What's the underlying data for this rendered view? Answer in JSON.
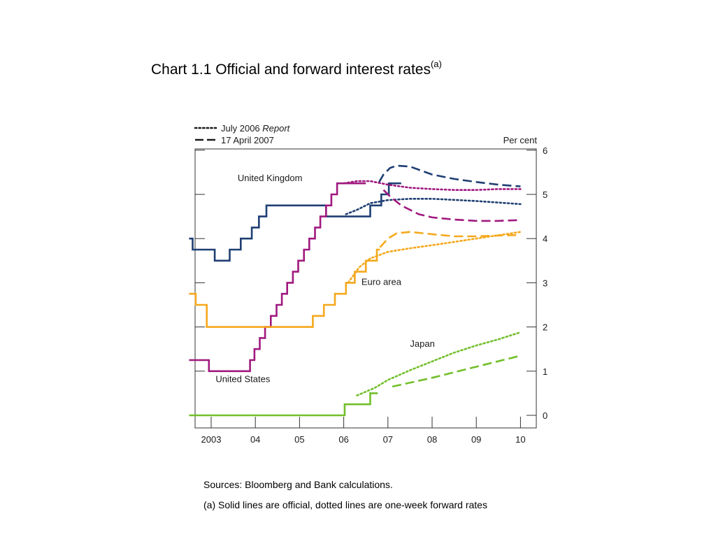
{
  "page": {
    "title": "Chart 1.1  Official and forward interest rates",
    "title_sup": "(a)",
    "sources": "Sources:  Bloomberg and Bank calculations.",
    "footnote": "(a) Solid lines are official, dotted lines are one-week forward rates"
  },
  "chart_data": {
    "type": "line",
    "title": "",
    "xlabel": "",
    "ylabel": "Per cent",
    "ylim": [
      0,
      6
    ],
    "xlim": [
      2002.5,
      2010.05
    ],
    "x_ticks": [
      {
        "label": "2003",
        "x": 2003.0
      },
      {
        "label": "04",
        "x": 2004.0
      },
      {
        "label": "05",
        "x": 2005.0
      },
      {
        "label": "06",
        "x": 2006.0
      },
      {
        "label": "07",
        "x": 2007.0
      },
      {
        "label": "08",
        "x": 2008.0
      },
      {
        "label": "09",
        "x": 2009.0
      },
      {
        "label": "10",
        "x": 2010.0
      }
    ],
    "y_ticks": [
      0,
      1,
      2,
      3,
      4,
      5,
      6
    ],
    "grid": false,
    "legend": {
      "position": "top-left",
      "entries": [
        {
          "label": "July 2006 ",
          "label_italic": "Report",
          "style": "dotted"
        },
        {
          "label": "17 April 2007",
          "style": "dashed"
        }
      ]
    },
    "annotations": [
      {
        "text": "United Kingdom",
        "x": 2003.6,
        "y": 5.3
      },
      {
        "text": "United States",
        "x": 2003.1,
        "y": 0.75
      },
      {
        "text": "Euro area",
        "x": 2006.4,
        "y": 2.95
      },
      {
        "text": "Japan",
        "x": 2007.5,
        "y": 1.55
      }
    ],
    "series": [
      {
        "name": "United Kingdom",
        "color": "#1f3f73",
        "style": "official",
        "points": [
          [
            2002.5,
            4.0
          ],
          [
            2002.58,
            4.0
          ],
          [
            2002.58,
            3.75
          ],
          [
            2003.08,
            3.75
          ],
          [
            2003.08,
            3.5
          ],
          [
            2003.42,
            3.5
          ],
          [
            2003.42,
            3.75
          ],
          [
            2003.67,
            3.75
          ],
          [
            2003.67,
            4.0
          ],
          [
            2003.92,
            4.0
          ],
          [
            2003.92,
            4.25
          ],
          [
            2004.08,
            4.25
          ],
          [
            2004.08,
            4.5
          ],
          [
            2004.25,
            4.5
          ],
          [
            2004.25,
            4.75
          ],
          [
            2004.5,
            4.75
          ],
          [
            2004.5,
            4.75
          ],
          [
            2005.08,
            4.75
          ],
          [
            2005.08,
            4.75
          ],
          [
            2005.6,
            4.75
          ],
          [
            2005.6,
            4.5
          ],
          [
            2006.6,
            4.5
          ],
          [
            2006.6,
            4.75
          ],
          [
            2006.85,
            4.75
          ],
          [
            2006.85,
            5.0
          ],
          [
            2007.02,
            5.0
          ],
          [
            2007.02,
            5.25
          ],
          [
            2007.3,
            5.25
          ]
        ]
      },
      {
        "name": "United Kingdom",
        "color": "#1f3f73",
        "style": "dotted",
        "points": [
          [
            2006.05,
            4.55
          ],
          [
            2006.3,
            4.65
          ],
          [
            2006.6,
            4.8
          ],
          [
            2007.0,
            4.87
          ],
          [
            2007.5,
            4.9
          ],
          [
            2008.0,
            4.9
          ],
          [
            2009.0,
            4.85
          ],
          [
            2010.0,
            4.78
          ]
        ]
      },
      {
        "name": "United Kingdom",
        "color": "#1f3f73",
        "style": "dashed",
        "points": [
          [
            2006.8,
            5.28
          ],
          [
            2006.9,
            5.45
          ],
          [
            2007.05,
            5.6
          ],
          [
            2007.2,
            5.65
          ],
          [
            2007.5,
            5.63
          ],
          [
            2008.0,
            5.45
          ],
          [
            2008.5,
            5.35
          ],
          [
            2009.0,
            5.28
          ],
          [
            2009.5,
            5.22
          ],
          [
            2010.0,
            5.18
          ]
        ]
      },
      {
        "name": "United States",
        "color": "#a0197f",
        "style": "official",
        "points": [
          [
            2002.5,
            1.25
          ],
          [
            2002.95,
            1.25
          ],
          [
            2002.95,
            1.0
          ],
          [
            2003.88,
            1.0
          ],
          [
            2003.88,
            1.25
          ],
          [
            2003.98,
            1.25
          ],
          [
            2003.98,
            1.5
          ],
          [
            2004.1,
            1.5
          ],
          [
            2004.1,
            1.75
          ],
          [
            2004.22,
            1.75
          ],
          [
            2004.22,
            2.0
          ],
          [
            2004.35,
            2.0
          ],
          [
            2004.35,
            2.25
          ],
          [
            2004.48,
            2.25
          ],
          [
            2004.48,
            2.5
          ],
          [
            2004.6,
            2.5
          ],
          [
            2004.6,
            2.75
          ],
          [
            2004.72,
            2.75
          ],
          [
            2004.72,
            3.0
          ],
          [
            2004.85,
            3.0
          ],
          [
            2004.85,
            3.25
          ],
          [
            2004.97,
            3.25
          ],
          [
            2004.97,
            3.5
          ],
          [
            2005.1,
            3.5
          ],
          [
            2005.1,
            3.75
          ],
          [
            2005.22,
            3.75
          ],
          [
            2005.22,
            4.0
          ],
          [
            2005.35,
            4.0
          ],
          [
            2005.35,
            4.25
          ],
          [
            2005.47,
            4.25
          ],
          [
            2005.47,
            4.5
          ],
          [
            2005.6,
            4.5
          ],
          [
            2005.6,
            4.75
          ],
          [
            2005.72,
            4.75
          ],
          [
            2005.72,
            5.0
          ],
          [
            2005.85,
            5.0
          ],
          [
            2005.85,
            5.25
          ],
          [
            2006.5,
            5.25
          ]
        ]
      },
      {
        "name": "United States",
        "color": "#a0197f",
        "style": "dotted",
        "points": [
          [
            2006.0,
            5.25
          ],
          [
            2006.3,
            5.3
          ],
          [
            2006.6,
            5.3
          ],
          [
            2007.0,
            5.22
          ],
          [
            2007.5,
            5.15
          ],
          [
            2008.0,
            5.12
          ],
          [
            2008.5,
            5.1
          ],
          [
            2009.0,
            5.1
          ],
          [
            2009.5,
            5.12
          ],
          [
            2010.0,
            5.12
          ]
        ]
      },
      {
        "name": "United States",
        "color": "#a0197f",
        "style": "dashed",
        "points": [
          [
            2006.9,
            5.1
          ],
          [
            2007.05,
            4.95
          ],
          [
            2007.3,
            4.75
          ],
          [
            2007.7,
            4.55
          ],
          [
            2008.0,
            4.48
          ],
          [
            2008.5,
            4.43
          ],
          [
            2009.0,
            4.4
          ],
          [
            2009.5,
            4.4
          ],
          [
            2010.0,
            4.42
          ]
        ]
      },
      {
        "name": "Euro area",
        "color": "#f5a81c",
        "style": "official",
        "points": [
          [
            2002.5,
            2.75
          ],
          [
            2002.65,
            2.75
          ],
          [
            2002.65,
            2.5
          ],
          [
            2002.9,
            2.5
          ],
          [
            2002.9,
            2.0
          ],
          [
            2005.3,
            2.0
          ],
          [
            2005.3,
            2.25
          ],
          [
            2005.55,
            2.25
          ],
          [
            2005.55,
            2.5
          ],
          [
            2005.8,
            2.5
          ],
          [
            2005.8,
            2.75
          ],
          [
            2006.05,
            2.75
          ],
          [
            2006.05,
            3.0
          ],
          [
            2006.25,
            3.0
          ],
          [
            2006.25,
            3.25
          ],
          [
            2006.5,
            3.25
          ],
          [
            2006.5,
            3.5
          ],
          [
            2006.75,
            3.5
          ],
          [
            2006.75,
            3.75
          ],
          [
            2006.82,
            3.75
          ]
        ]
      },
      {
        "name": "Euro area",
        "color": "#f5a81c",
        "style": "dotted",
        "points": [
          [
            2006.1,
            3.0
          ],
          [
            2006.35,
            3.35
          ],
          [
            2006.6,
            3.55
          ],
          [
            2007.0,
            3.7
          ],
          [
            2007.5,
            3.78
          ],
          [
            2008.0,
            3.85
          ],
          [
            2009.0,
            4.0
          ],
          [
            2010.0,
            4.15
          ]
        ]
      },
      {
        "name": "Euro area",
        "color": "#f5a81c",
        "style": "dashed",
        "points": [
          [
            2006.82,
            3.8
          ],
          [
            2007.0,
            4.0
          ],
          [
            2007.2,
            4.12
          ],
          [
            2007.5,
            4.15
          ],
          [
            2008.0,
            4.1
          ],
          [
            2008.5,
            4.05
          ],
          [
            2009.0,
            4.05
          ],
          [
            2009.5,
            4.07
          ],
          [
            2010.0,
            4.08
          ]
        ]
      },
      {
        "name": "Japan",
        "color": "#72bf2a",
        "style": "official",
        "points": [
          [
            2002.5,
            0.0
          ],
          [
            2006.02,
            0.0
          ],
          [
            2006.02,
            0.25
          ],
          [
            2006.6,
            0.25
          ],
          [
            2006.6,
            0.5
          ],
          [
            2006.77,
            0.5
          ]
        ]
      },
      {
        "name": "Japan",
        "color": "#72bf2a",
        "style": "dotted",
        "points": [
          [
            2006.3,
            0.45
          ],
          [
            2006.7,
            0.62
          ],
          [
            2007.0,
            0.8
          ],
          [
            2007.5,
            1.02
          ],
          [
            2008.0,
            1.22
          ],
          [
            2008.5,
            1.42
          ],
          [
            2009.0,
            1.58
          ],
          [
            2009.5,
            1.72
          ],
          [
            2010.0,
            1.88
          ]
        ]
      },
      {
        "name": "Japan",
        "color": "#72bf2a",
        "style": "dashed",
        "points": [
          [
            2007.1,
            0.65
          ],
          [
            2008.0,
            0.85
          ],
          [
            2009.0,
            1.1
          ],
          [
            2010.0,
            1.35
          ]
        ]
      }
    ]
  }
}
